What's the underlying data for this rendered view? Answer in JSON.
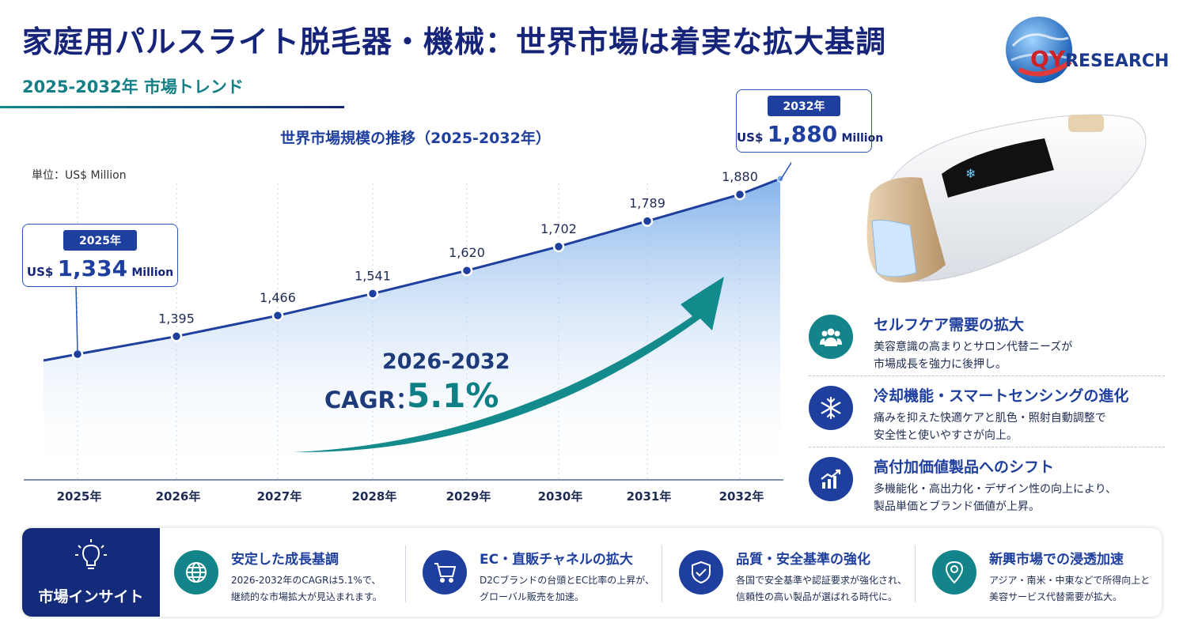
{
  "header": {
    "title": "家庭用パルスライト脱毛器・機械：世界市場は着実な拡大基調",
    "subtitle": "2025-2032年 市場トレンド",
    "logo_text_q": "QY",
    "logo_text_rest": "RESEARCH"
  },
  "chart_data": {
    "type": "area",
    "title": "世界市場規模の推移（2025-2032年）",
    "unit_label": "単位：US$ Million",
    "categories": [
      "2025年",
      "2026年",
      "2027年",
      "2028年",
      "2029年",
      "2030年",
      "2031年",
      "2032年"
    ],
    "values": [
      1334,
      1395,
      1466,
      1541,
      1620,
      1702,
      1789,
      1880
    ],
    "data_labels": [
      "",
      "1,395",
      "1,466",
      "1,541",
      "1,620",
      "1,702",
      "1,789",
      "1,880"
    ],
    "ylim": [
      1000,
      2000
    ],
    "grid": "vertical dotted",
    "colors": {
      "line": "#1f3f9f",
      "area": "#7fb0ea",
      "arrow": "#138a8c"
    }
  },
  "callout_2025": {
    "year": "2025年",
    "prefix": "US$",
    "value": "1,334",
    "suffix": "Million"
  },
  "callout_2032": {
    "year": "2032年",
    "prefix": "US$",
    "value": "1,880",
    "suffix": "Million"
  },
  "cagr": {
    "period": "2026-2032",
    "label": "CAGR：",
    "value": "5.1%"
  },
  "factors": [
    {
      "icon": "people-icon",
      "title": "セルフケア需要の拡大",
      "line1": "美容意識の高まりとサロン代替ニーズが",
      "line2": "市場成長を強力に後押し。",
      "color": "#13858a"
    },
    {
      "icon": "snowflake-icon",
      "title": "冷却機能・スマートセンシングの進化",
      "line1": "痛みを抑えた快適ケアと肌色・照射自動調整で",
      "line2": "安全性と使いやすさが向上。",
      "color": "#1f3f9f"
    },
    {
      "icon": "growth-chart-icon",
      "title": "高付加価値製品へのシフト",
      "line1": "多機能化・高出力化・デザイン性の向上により、",
      "line2": "製品単価とブランド価値が上昇。",
      "color": "#1f3f9f"
    }
  ],
  "insights": {
    "heading": "市場インサイト",
    "items": [
      {
        "icon": "globe-icon",
        "title": "安定した成長基調",
        "line1": "2026-2032年のCAGRは5.1%で、",
        "line2": "継続的な市場拡大が見込まれます。",
        "color": "#13858a"
      },
      {
        "icon": "cart-icon",
        "title": "EC・直販チャネルの拡大",
        "line1": "D2Cブランドの台頭とEC比率の上昇が、",
        "line2": "グローバル販売を加速。",
        "color": "#1f3f9f"
      },
      {
        "icon": "shield-check-icon",
        "title": "品質・安全基準の強化",
        "line1": "各国で安全基準や認証要求が強化され、",
        "line2": "信頼性の高い製品が選ばれる時代に。",
        "color": "#1f3f9f"
      },
      {
        "icon": "location-pin-icon",
        "title": "新興市場での浸透加速",
        "line1": "アジア・南米・中東などで所得向上と",
        "line2": "美容サービス代替需要が拡大。",
        "color": "#13858a"
      }
    ]
  }
}
